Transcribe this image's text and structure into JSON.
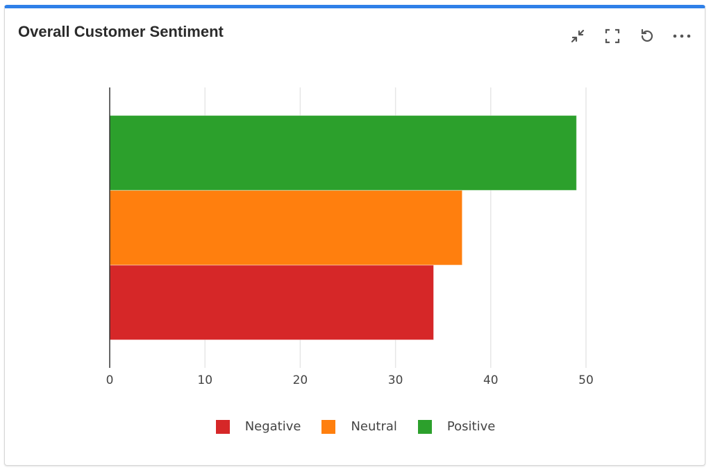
{
  "card": {
    "title": "Overall Customer Sentiment"
  },
  "toolbar": [
    {
      "name": "collapse-icon"
    },
    {
      "name": "fullscreen-icon"
    },
    {
      "name": "refresh-icon"
    },
    {
      "name": "more-options-icon"
    }
  ],
  "chart_data": {
    "type": "bar",
    "orientation": "horizontal",
    "title": "Overall Customer Sentiment",
    "categories": [
      ""
    ],
    "series": [
      {
        "name": "Negative",
        "values": [
          34
        ],
        "color": "#d62728"
      },
      {
        "name": "Neutral",
        "values": [
          37
        ],
        "color": "#ff7f0e"
      },
      {
        "name": "Positive",
        "values": [
          49
        ],
        "color": "#2ca02c"
      }
    ],
    "xlim": [
      0,
      50
    ],
    "xticks": [
      "0",
      "10",
      "20",
      "30",
      "40",
      "50"
    ],
    "grid": true,
    "legend": "bottom"
  }
}
